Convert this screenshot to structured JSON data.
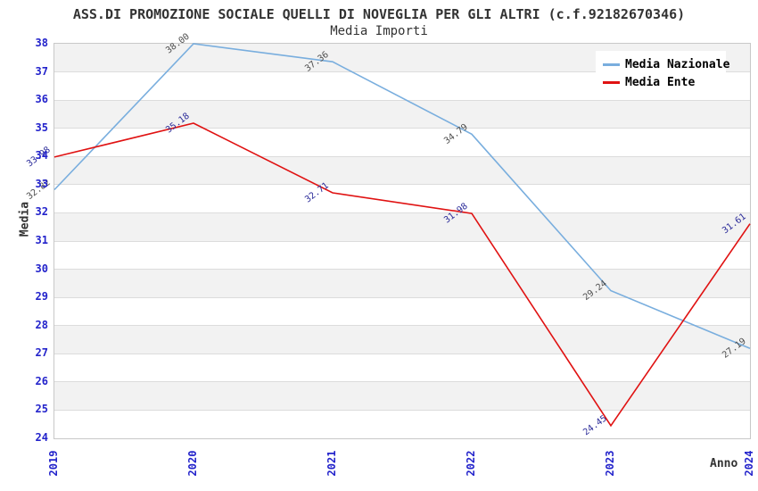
{
  "chart": {
    "title": "ASS.DI PROMOZIONE SOCIALE QUELLI DI NOVEGLIA PER GLI ALTRI (c.f.92182670346)",
    "subtitle": "Media Importi",
    "ylabel": "Media",
    "xlabel": "Anno"
  },
  "legend": {
    "items": [
      {
        "label": "Media Nazionale",
        "color": "#79aede"
      },
      {
        "label": "Media Ente",
        "color": "#e01212"
      }
    ]
  },
  "chart_data": {
    "type": "line",
    "title": "ASS.DI PROMOZIONE SOCIALE QUELLI DI NOVEGLIA PER GLI ALTRI (c.f.92182670346)",
    "subtitle": "Media Importi",
    "xlabel": "Anno",
    "ylabel": "Media",
    "categories": [
      "2019",
      "2020",
      "2021",
      "2022",
      "2023",
      "2024"
    ],
    "series": [
      {
        "name": "Media Nazionale",
        "color": "#79aede",
        "label_color": "#4d4d4d",
        "values": [
          32.82,
          38.0,
          37.36,
          34.79,
          29.24,
          27.19
        ]
      },
      {
        "name": "Media Ente",
        "color": "#e01212",
        "label_color": "#2b2b99",
        "values": [
          33.98,
          35.18,
          32.71,
          31.98,
          24.45,
          31.61
        ]
      }
    ],
    "ylim": [
      24,
      38
    ],
    "ytick_step": 1,
    "grid": "horizontal-bands",
    "band_color": "#f2f2f2",
    "gridline_color": "#dcdcdc",
    "tick_color": "#2323cb",
    "legend_position": "top-right",
    "label_decimals": 2,
    "label_angle_deg": -37
  }
}
